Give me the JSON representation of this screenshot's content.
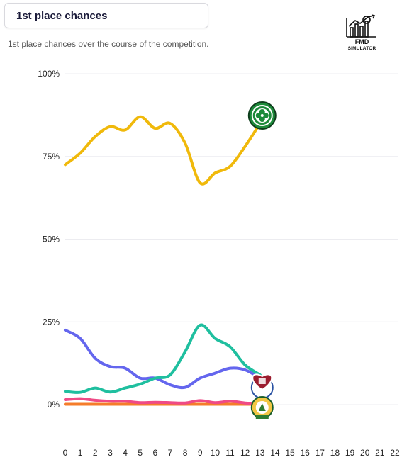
{
  "header": {
    "title": "1st place chances",
    "subtitle": "1st place chances over the course of the competition."
  },
  "logo": {
    "icon": "chart-ball-icon",
    "line1": "FMD",
    "line2": "SIMULATOR"
  },
  "chart_data": {
    "type": "line",
    "title": "",
    "xlabel": "",
    "ylabel": "",
    "x": [
      0,
      1,
      2,
      3,
      4,
      5,
      6,
      7,
      8,
      9,
      10,
      11,
      12,
      13
    ],
    "xlim": [
      0,
      22
    ],
    "x_ticks": [
      "0",
      "1",
      "2",
      "3",
      "4",
      "5",
      "6",
      "7",
      "8",
      "9",
      "10",
      "11",
      "12",
      "13",
      "14",
      "15",
      "16",
      "17",
      "18",
      "19",
      "20",
      "21",
      "22"
    ],
    "ylim": [
      0,
      100
    ],
    "y_ticks": [
      "0%",
      "25%",
      "50%",
      "75%",
      "100%"
    ],
    "grid": true,
    "legend": "none",
    "series": [
      {
        "icon": "celtic-crest-icon",
        "color": "#f0b90b",
        "values": [
          72.5,
          76,
          81,
          84,
          83,
          87,
          83.5,
          85,
          79,
          67,
          70,
          72,
          78,
          85
        ]
      },
      {
        "icon": "aberdeen-crest-icon",
        "color": "#1fbf9f",
        "values": [
          4,
          3.7,
          5,
          3.8,
          5,
          6.2,
          8,
          9,
          16,
          24,
          20,
          17.5,
          12,
          9
        ]
      },
      {
        "icon": "hearts-crest-icon",
        "color": "#6466ee",
        "values": [
          22.5,
          20,
          14,
          11.5,
          11,
          8,
          8,
          6,
          5.2,
          8,
          9.5,
          11,
          10.5,
          8
        ]
      },
      {
        "icon": "hibernian-crest-icon",
        "color": "#ef4a86",
        "values": [
          1.5,
          1.8,
          1.3,
          1,
          1,
          0.6,
          0.7,
          0.6,
          0.5,
          1.2,
          0.6,
          1,
          0.5,
          0.2
        ]
      },
      {
        "icon": "other-team-icon",
        "color": "#f57c2a",
        "values": [
          0.1,
          0.1,
          0.1,
          0.1,
          0.1,
          0.1,
          0.1,
          0.1,
          0.1,
          0.1,
          0.1,
          0.1,
          0.1,
          0.1
        ]
      }
    ]
  }
}
